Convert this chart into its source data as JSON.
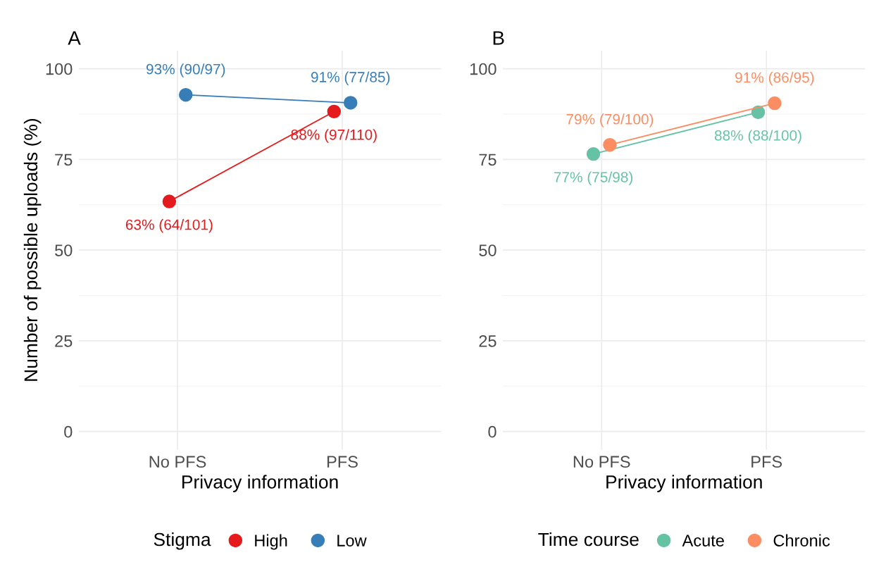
{
  "chart_data": [
    {
      "type": "line",
      "title": "A",
      "xlabel": "Privacy information",
      "ylabel": "Number of possible uploads (%)",
      "legend_title": "Stigma",
      "categories": [
        "No PFS",
        "PFS"
      ],
      "series": [
        {
          "name": "High",
          "color": "#e41a1c",
          "values": [
            63.4,
            88.2
          ],
          "value_labels": [
            "63% (64/101)",
            "88% (97/110)"
          ]
        },
        {
          "name": "Low",
          "color": "#377eb8",
          "values": [
            92.8,
            90.6
          ],
          "value_labels": [
            "93% (90/97)",
            "91% (77/85)"
          ]
        }
      ],
      "ylim": [
        -5,
        105
      ],
      "yticks": [
        0,
        25,
        50,
        75,
        100
      ],
      "grid": true,
      "legend": "bottom",
      "marker": "circle"
    },
    {
      "type": "line",
      "title": "B",
      "xlabel": "Privacy information",
      "legend_title": "Time course",
      "categories": [
        "No PFS",
        "PFS"
      ],
      "series": [
        {
          "name": "Acute",
          "color": "#66c2a5",
          "values": [
            76.5,
            88.0
          ],
          "value_labels": [
            "77% (75/98)",
            "88% (88/100)"
          ]
        },
        {
          "name": "Chronic",
          "color": "#fc8d62",
          "values": [
            79.0,
            90.5
          ],
          "value_labels": [
            "79% (79/100)",
            "91% (86/95)"
          ]
        }
      ],
      "ylim": [
        -5,
        105
      ],
      "yticks": [
        0,
        25,
        50,
        75,
        100
      ],
      "grid": true,
      "legend": "bottom",
      "marker": "circle"
    }
  ]
}
